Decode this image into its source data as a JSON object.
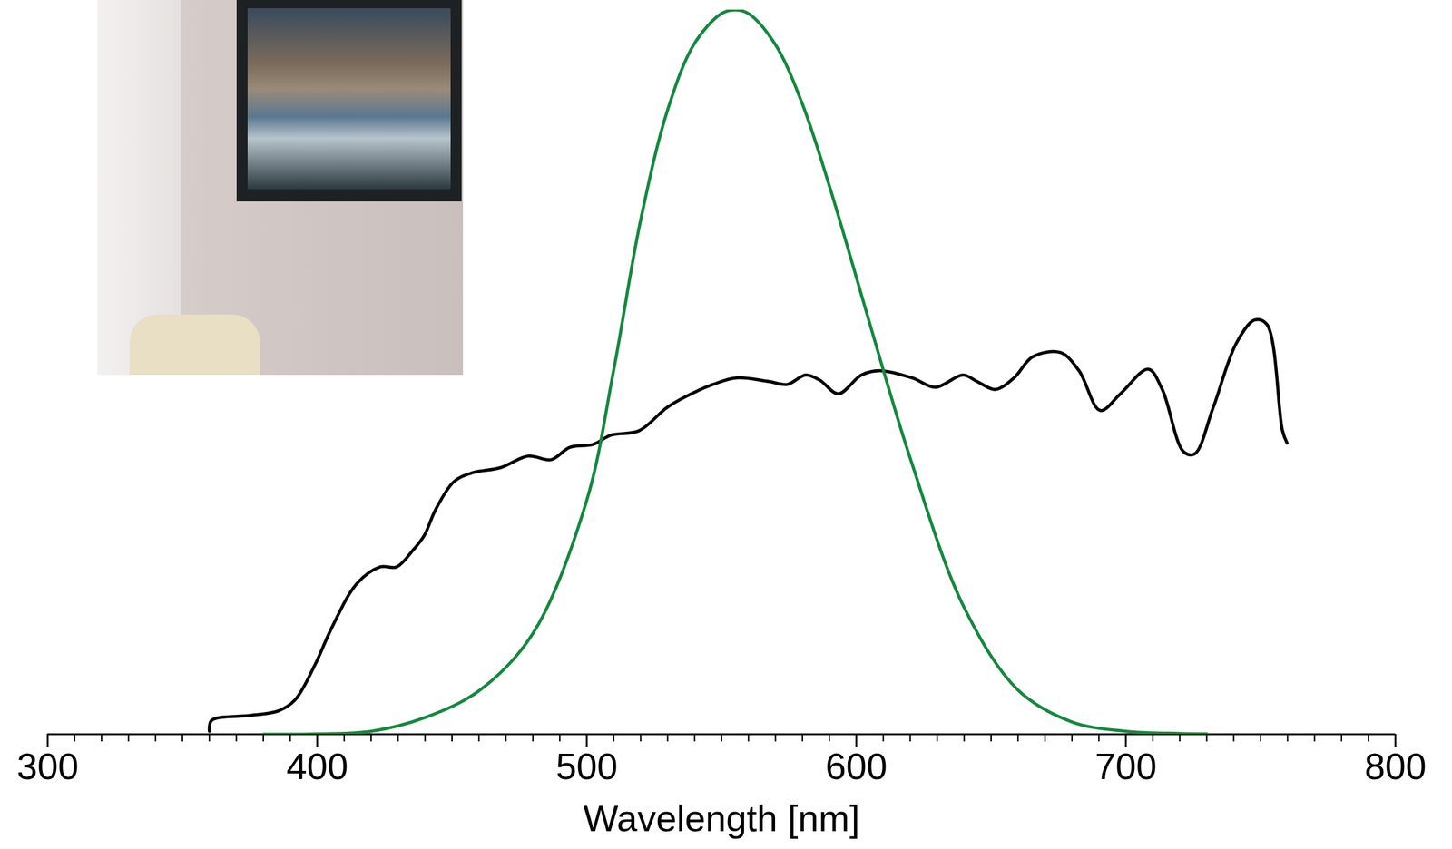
{
  "chart_data": {
    "type": "line",
    "xlabel": "Wavelength [nm]",
    "xlim": [
      300,
      800
    ],
    "xticks": [
      300,
      400,
      500,
      600,
      700,
      800
    ],
    "minor_xticks": [
      310,
      320,
      330,
      340,
      350,
      360,
      370,
      380,
      390,
      410,
      420,
      430,
      440,
      450,
      460,
      470,
      480,
      490,
      510,
      520,
      530,
      540,
      550,
      560,
      570,
      580,
      590,
      610,
      620,
      630,
      640,
      650,
      660,
      670,
      680,
      690,
      710,
      720,
      730,
      740,
      750,
      760,
      770,
      780,
      790
    ],
    "ylim": [
      0,
      1
    ],
    "yticks": [],
    "tick_labels": "x",
    "series": [
      {
        "color": "#000000",
        "x": [
          360.0,
          360.8,
          375.2,
          385.5,
          391.7,
          399.2,
          405.4,
          414.7,
          423.3,
          429.5,
          435.3,
          439.8,
          443.9,
          450.8,
          457.6,
          468.0,
          478.2,
          486.8,
          493.7,
          502.3,
          509.1,
          519.4,
          529.7,
          536.6,
          546.9,
          555.5,
          567.5,
          574.4,
          581.2,
          586.4,
          593.3,
          601.9,
          608.7,
          620.7,
          629.3,
          639.6,
          644.8,
          651.6,
          658.5,
          665.4,
          675.7,
          682.6,
          690.5,
          698.0,
          708.3,
          713.5,
          721.4,
          725.5,
          732.4,
          741.0,
          747.8,
          752.3,
          758.1,
          759.8
        ],
        "values": [
          0.004,
          0.019,
          0.026,
          0.032,
          0.047,
          0.096,
          0.147,
          0.208,
          0.231,
          0.231,
          0.253,
          0.275,
          0.31,
          0.349,
          0.361,
          0.368,
          0.384,
          0.379,
          0.396,
          0.4,
          0.413,
          0.419,
          0.451,
          0.466,
          0.483,
          0.492,
          0.487,
          0.483,
          0.496,
          0.489,
          0.47,
          0.496,
          0.502,
          0.492,
          0.479,
          0.496,
          0.487,
          0.476,
          0.492,
          0.521,
          0.527,
          0.502,
          0.447,
          0.47,
          0.504,
          0.476,
          0.39,
          0.387,
          0.451,
          0.54,
          0.572,
          0.566,
          0.419,
          0.402
        ]
      },
      {
        "color": "#14883f",
        "x": [
          380,
          400,
          420,
          440,
          460,
          480,
          500,
          510,
          520,
          530,
          540,
          550,
          555,
          560,
          570,
          580,
          590,
          600,
          610,
          620,
          640,
          660,
          680,
          700,
          720,
          730
        ],
        "values": [
          0.0,
          0.0004,
          0.004,
          0.023,
          0.06,
          0.139,
          0.323,
          0.503,
          0.71,
          0.862,
          0.954,
          0.995,
          1.0,
          0.995,
          0.952,
          0.87,
          0.757,
          0.631,
          0.503,
          0.381,
          0.175,
          0.061,
          0.017,
          0.0041,
          0.001,
          0.0005
        ]
      }
    ]
  }
}
